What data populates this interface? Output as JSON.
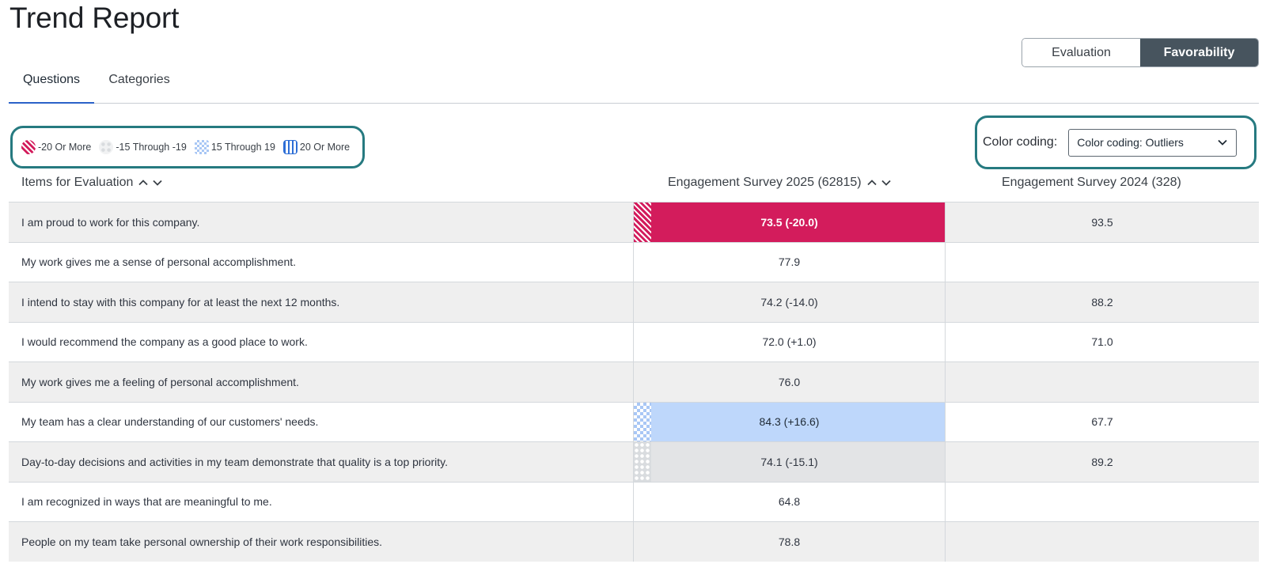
{
  "page": {
    "title": "Trend Report"
  },
  "view_toggle": {
    "evaluation": "Evaluation",
    "favorability": "Favorability",
    "active": "favorability"
  },
  "tabs": [
    {
      "label": "Questions",
      "active": true
    },
    {
      "label": "Categories",
      "active": false
    }
  ],
  "legend": [
    {
      "swatch": "diagonal-stripes-icon",
      "label": "-20 Or More",
      "color": "#d31c5c"
    },
    {
      "swatch": "dots-icon",
      "label": "-15 Through -19",
      "color": "#d9dcdf"
    },
    {
      "swatch": "checker-icon",
      "label": "15 Through 19",
      "color": "#a9c7f5"
    },
    {
      "swatch": "vertical-stripes-icon",
      "label": "20 Or More",
      "color": "#2d6ed6"
    }
  ],
  "color_coding": {
    "label": "Color coding:",
    "selected": "Color coding: Outliers"
  },
  "columns": {
    "items": "Items for Evaluation",
    "current": "Engagement Survey 2025 (62815)",
    "previous": "Engagement Survey 2024 (328)"
  },
  "rows": [
    {
      "question": "I am proud to work for this company.",
      "current": "73.5  (-20.0)",
      "previous": "93.5",
      "highlight": "neg20"
    },
    {
      "question": "My work gives me a sense of personal accomplishment.",
      "current": "77.9",
      "previous": "",
      "highlight": "none"
    },
    {
      "question": "I intend to stay with this company for at least the next 12 months.",
      "current": "74.2  (-14.0)",
      "previous": "88.2",
      "highlight": "none"
    },
    {
      "question": "I would recommend the company as a good place to work.",
      "current": "72.0  (+1.0)",
      "previous": "71.0",
      "highlight": "none"
    },
    {
      "question": "My work gives me a feeling of personal accomplishment.",
      "current": "76.0",
      "previous": "",
      "highlight": "none"
    },
    {
      "question": "My team has a clear understanding of our customers' needs.",
      "current": "84.3  (+16.6)",
      "previous": "67.7",
      "highlight": "pos15"
    },
    {
      "question": "Day-to-day decisions and activities in my team demonstrate that quality is a top priority.",
      "current": "74.1  (-15.1)",
      "previous": "89.2",
      "highlight": "neg15"
    },
    {
      "question": "I am recognized in ways that are meaningful to me.",
      "current": "64.8",
      "previous": "",
      "highlight": "none"
    },
    {
      "question": "People on my team take personal ownership of their work responsibilities.",
      "current": "78.8",
      "previous": "",
      "highlight": "none"
    }
  ]
}
